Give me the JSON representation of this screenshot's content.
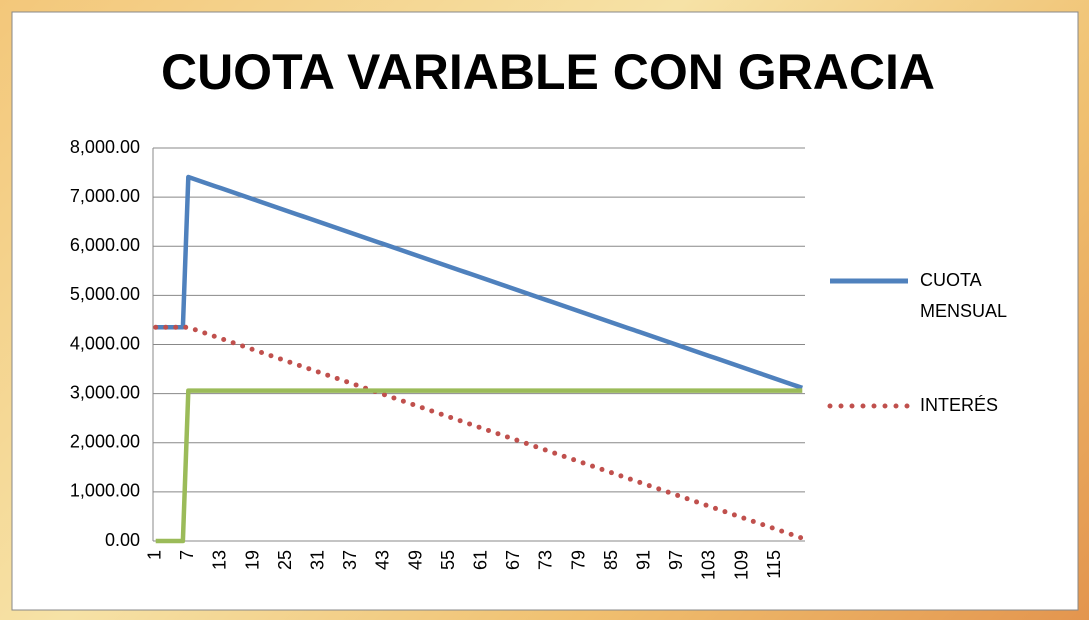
{
  "chart_data": {
    "type": "line",
    "title": "CUOTA VARIABLE CON GRACIA",
    "categories": [
      1,
      null,
      null,
      null,
      null,
      null,
      7,
      null,
      null,
      null,
      null,
      null,
      13,
      null,
      null,
      null,
      null,
      null,
      19,
      null,
      null,
      null,
      null,
      null,
      25,
      null,
      null,
      null,
      null,
      null,
      31,
      null,
      null,
      null,
      null,
      null,
      37,
      null,
      null,
      null,
      null,
      null,
      43,
      null,
      null,
      null,
      null,
      null,
      49,
      null,
      null,
      null,
      null,
      null,
      55,
      null,
      null,
      null,
      null,
      null,
      61,
      null,
      null,
      null,
      null,
      null,
      67,
      null,
      null,
      null,
      null,
      null,
      73,
      null,
      null,
      null,
      null,
      null,
      79,
      null,
      null,
      null,
      null,
      null,
      85,
      null,
      null,
      null,
      null,
      null,
      91,
      null,
      null,
      null,
      null,
      null,
      97,
      null,
      null,
      null,
      null,
      null,
      103,
      null,
      null,
      null,
      null,
      null,
      109,
      null,
      null,
      null,
      null,
      null,
      115,
      null,
      null,
      null,
      null,
      null
    ],
    "series": [
      {
        "name": "CUOTA MENSUAL",
        "color": "#4f81bd",
        "style": "solid",
        "values": [
          4350,
          4350,
          4350,
          4350,
          4350,
          4350,
          7410,
          7372,
          7334,
          7296,
          7258,
          7220,
          7182,
          7144,
          7106,
          7068,
          7030,
          6992,
          6954,
          6916,
          6878,
          6840,
          6802,
          6764,
          6726,
          6688,
          6650,
          6612,
          6574,
          6536,
          6498,
          6460,
          6422,
          6384,
          6346,
          6308,
          6270,
          6232,
          6194,
          6156,
          6118,
          6080,
          6042,
          6004,
          5966,
          5928,
          5890,
          5852,
          5814,
          5776,
          5738,
          5700,
          5662,
          5624,
          5586,
          5548,
          5510,
          5472,
          5434,
          5396,
          5358,
          5320,
          5282,
          5244,
          5206,
          5168,
          5130,
          5092,
          5054,
          5016,
          4978,
          4940,
          4902,
          4864,
          4826,
          4788,
          4750,
          4712,
          4674,
          4636,
          4598,
          4560,
          4522,
          4484,
          4446,
          4408,
          4370,
          4332,
          4294,
          4256,
          4218,
          4180,
          4142,
          4104,
          4066,
          4028,
          3990,
          3952,
          3914,
          3876,
          3838,
          3800,
          3762,
          3724,
          3686,
          3648,
          3610,
          3572,
          3534,
          3496,
          3458,
          3420,
          3382,
          3344,
          3306,
          3268,
          3230,
          3192,
          3154,
          3116
        ]
      },
      {
        "name": "INTERÉS",
        "color": "#c0504d",
        "style": "dotted",
        "values": [
          4350,
          4350,
          4350,
          4350,
          4350,
          4350,
          4350,
          4312,
          4274,
          4236,
          4198,
          4160,
          4122,
          4084,
          4046,
          4008,
          3970,
          3932,
          3894,
          3856,
          3818,
          3780,
          3742,
          3704,
          3666,
          3628,
          3590,
          3552,
          3514,
          3476,
          3438,
          3400,
          3362,
          3324,
          3286,
          3248,
          3210,
          3172,
          3134,
          3096,
          3058,
          3020,
          2982,
          2944,
          2906,
          2868,
          2830,
          2792,
          2754,
          2716,
          2678,
          2640,
          2602,
          2564,
          2526,
          2488,
          2450,
          2412,
          2374,
          2336,
          2298,
          2260,
          2222,
          2184,
          2146,
          2108,
          2070,
          2032,
          1994,
          1956,
          1918,
          1880,
          1842,
          1804,
          1766,
          1728,
          1690,
          1652,
          1614,
          1576,
          1538,
          1500,
          1462,
          1424,
          1386,
          1348,
          1310,
          1272,
          1234,
          1196,
          1158,
          1120,
          1082,
          1044,
          1006,
          968,
          930,
          892,
          854,
          816,
          778,
          740,
          702,
          664,
          626,
          588,
          550,
          512,
          474,
          436,
          398,
          360,
          322,
          284,
          246,
          208,
          170,
          132,
          94,
          56
        ]
      },
      {
        "color": "#9bbb59",
        "style": "solid",
        "values": [
          0,
          0,
          0,
          0,
          0,
          0,
          3060,
          3060,
          3060,
          3060,
          3060,
          3060,
          3060,
          3060,
          3060,
          3060,
          3060,
          3060,
          3060,
          3060,
          3060,
          3060,
          3060,
          3060,
          3060,
          3060,
          3060,
          3060,
          3060,
          3060,
          3060,
          3060,
          3060,
          3060,
          3060,
          3060,
          3060,
          3060,
          3060,
          3060,
          3060,
          3060,
          3060,
          3060,
          3060,
          3060,
          3060,
          3060,
          3060,
          3060,
          3060,
          3060,
          3060,
          3060,
          3060,
          3060,
          3060,
          3060,
          3060,
          3060,
          3060,
          3060,
          3060,
          3060,
          3060,
          3060,
          3060,
          3060,
          3060,
          3060,
          3060,
          3060,
          3060,
          3060,
          3060,
          3060,
          3060,
          3060,
          3060,
          3060,
          3060,
          3060,
          3060,
          3060,
          3060,
          3060,
          3060,
          3060,
          3060,
          3060,
          3060,
          3060,
          3060,
          3060,
          3060,
          3060,
          3060,
          3060,
          3060,
          3060,
          3060,
          3060,
          3060,
          3060,
          3060,
          3060,
          3060,
          3060,
          3060,
          3060,
          3060,
          3060,
          3060,
          3060,
          3060,
          3060,
          3060,
          3060,
          3060,
          3060
        ]
      }
    ],
    "ylim": [
      0,
      8000
    ],
    "yticks": [
      {
        "value": 0,
        "label": "0.00"
      },
      {
        "value": 1000,
        "label": "1,000.00"
      },
      {
        "value": 2000,
        "label": "2,000.00"
      },
      {
        "value": 3000,
        "label": "3,000.00"
      },
      {
        "value": 4000,
        "label": "4,000.00"
      },
      {
        "value": 5000,
        "label": "5,000.00"
      },
      {
        "value": 6000,
        "label": "6,000.00"
      },
      {
        "value": 7000,
        "label": "7,000.00"
      },
      {
        "value": 8000,
        "label": "8,000.00"
      }
    ],
    "grid": true,
    "legend": "right"
  }
}
